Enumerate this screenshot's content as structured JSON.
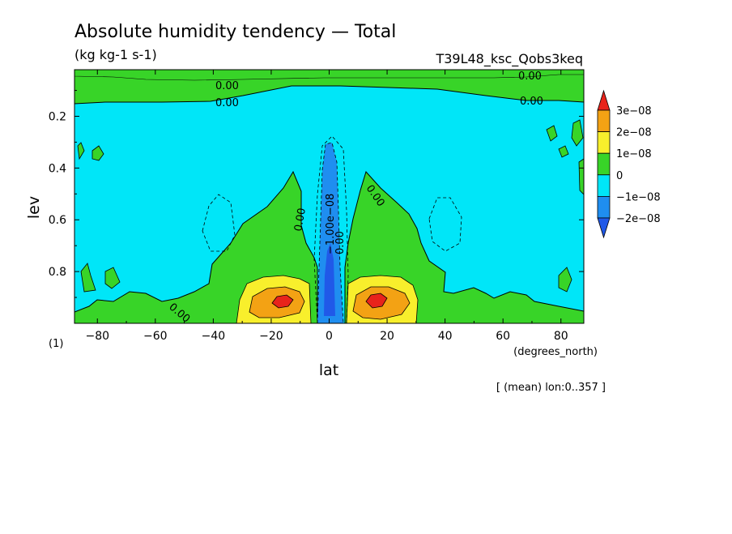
{
  "chart_data": {
    "type": "heatmap",
    "title": "Absolute humidity tendency — Total",
    "units": "(kg kg-1 s-1)",
    "experiment": "T39L48_ksc_Qobs3keq",
    "xlabel": "lat",
    "x_units": "(degrees_north)",
    "ylabel": "lev",
    "y_units": "(1)",
    "footnote": "[ (mean) lon:0..357 ]",
    "x_ticks": [
      -80,
      -60,
      -40,
      -20,
      0,
      20,
      40,
      60,
      80
    ],
    "x_tick_labels": [
      "−80",
      "−60",
      "−40",
      "−20",
      "0",
      "20",
      "40",
      "60",
      "80"
    ],
    "y_ticks": [
      0.2,
      0.4,
      0.6,
      0.8
    ],
    "y_tick_labels": [
      "0.2",
      "0.4",
      "0.6",
      "0.8"
    ],
    "xlim": [
      -87.9,
      87.9
    ],
    "ylim": [
      1.0,
      0.02
    ],
    "y_inverted": true,
    "colorbar": {
      "levels": [
        "3e−08",
        "2e−08",
        "1e−08",
        "0",
        "−1e−08",
        "−2e−08"
      ],
      "colors": [
        "#e8231b",
        "#f3a214",
        "#f8ef2c",
        "#38d428",
        "#00e6f8",
        "#1f8ef0",
        "#2059e8"
      ]
    },
    "contour_labels": [
      "0.00",
      "0.00",
      "0.00",
      "0.00",
      "0.00",
      "0.00",
      "0.00",
      "−1.00e−08",
      "0.00"
    ],
    "features": [
      {
        "name": "equatorial drying column",
        "lat": [
          -3,
          3
        ],
        "lev": [
          0.28,
          0.97
        ],
        "value_range": "−2e−08 to −1e−08"
      },
      {
        "name": "southern low-level moistening max",
        "lat": -17,
        "lev": 0.91,
        "value_range": ">3e−08"
      },
      {
        "name": "northern low-level moistening max",
        "lat": 15,
        "lev": 0.91,
        "value_range": ">3e−08"
      },
      {
        "name": "upper level moistening band",
        "lev": [
          0.02,
          0.12
        ],
        "value_range": "0 to 1e−08"
      },
      {
        "name": "subtropical drying background",
        "value_range": "−1e−08 to 0"
      }
    ]
  }
}
